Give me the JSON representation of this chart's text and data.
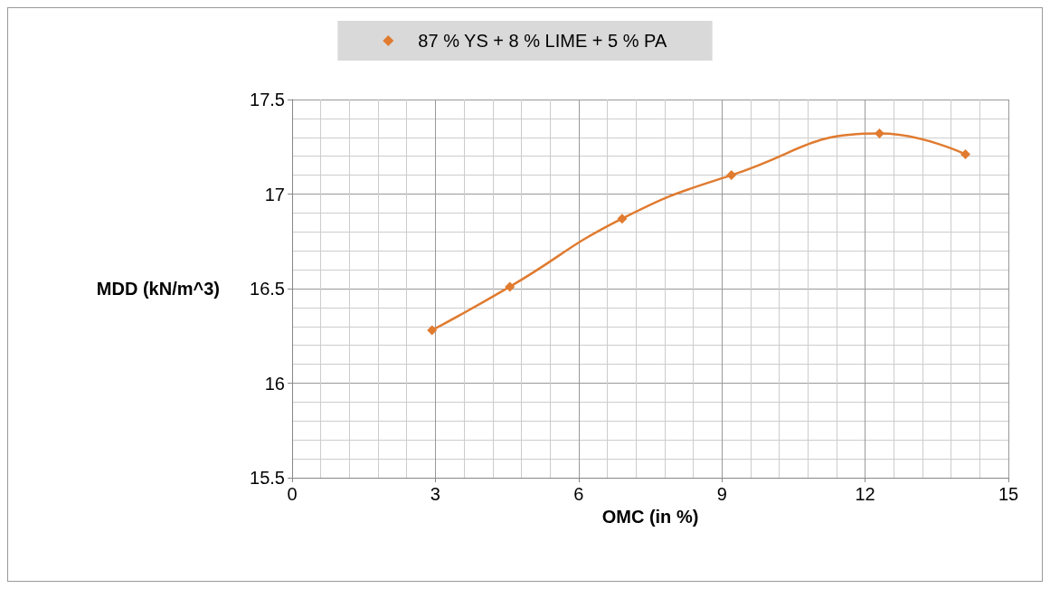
{
  "chart_data": {
    "type": "line",
    "xlabel": "OMC (in %)",
    "ylabel": "MDD (kN/m^3)",
    "x": [
      2.93,
      4.56,
      6.91,
      9.2,
      12.3,
      14.1
    ],
    "series": [
      {
        "name": "87 % YS + 8 % LIME + 5 % PA",
        "color": "#e07b30",
        "values": [
          16.28,
          16.51,
          16.87,
          17.1,
          17.32,
          17.21
        ]
      }
    ],
    "xlim": [
      0,
      15
    ],
    "xticks": [
      0,
      3,
      6,
      9,
      12,
      15
    ],
    "ylim": [
      15.5,
      17.5
    ],
    "yticks": [
      15.5,
      16,
      16.5,
      17,
      17.5
    ],
    "grid": true,
    "legend": "top",
    "marker": "diamond",
    "line_style": "solid"
  }
}
